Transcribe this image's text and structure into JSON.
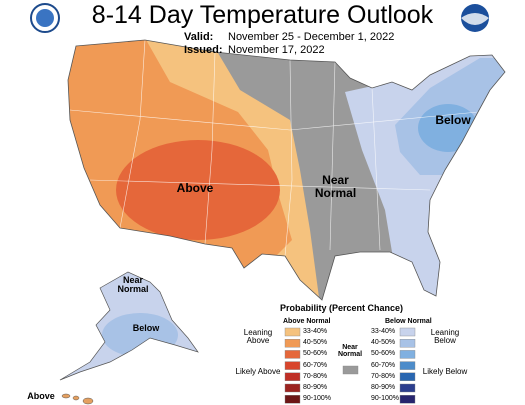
{
  "header": {
    "title": "8-14 Day Temperature Outlook",
    "valid_label": "Valid:",
    "valid": "November 25 - December 1, 2022",
    "issued_label": "Issued:",
    "issued": "November 17, 2022"
  },
  "map_labels": {
    "above": "Above",
    "near": "Near Normal",
    "below": "Below"
  },
  "alaska_labels": {
    "near": "Near Normal",
    "below": "Below"
  },
  "hawaii_label": "Above",
  "legend": {
    "title": "Probability (Percent Chance)",
    "above_heading": "Above Normal",
    "below_heading": "Below Normal",
    "near_label": "Near Normal",
    "leaning_above": "Leaning Above",
    "likely_above": "Likely Above",
    "leaning_below": "Leaning Below",
    "likely_below": "Likely Below",
    "above_ranges": [
      "33-40%",
      "40-50%",
      "50-60%",
      "60-70%",
      "70-80%",
      "80-90%",
      "90-100%"
    ],
    "below_ranges": [
      "33-40%",
      "40-50%",
      "50-60%",
      "60-70%",
      "70-80%",
      "80-90%",
      "90-100%"
    ],
    "above_colors": [
      "#f5c27e",
      "#f09a55",
      "#e5673a",
      "#d8452c",
      "#bf2f26",
      "#9c2320",
      "#6c1616"
    ],
    "below_colors": [
      "#c8d3ec",
      "#a8c2e6",
      "#80b0e0",
      "#4d8cca",
      "#2966b0",
      "#2c3e8e",
      "#27256e"
    ],
    "near_color": "#9a9a9a"
  }
}
